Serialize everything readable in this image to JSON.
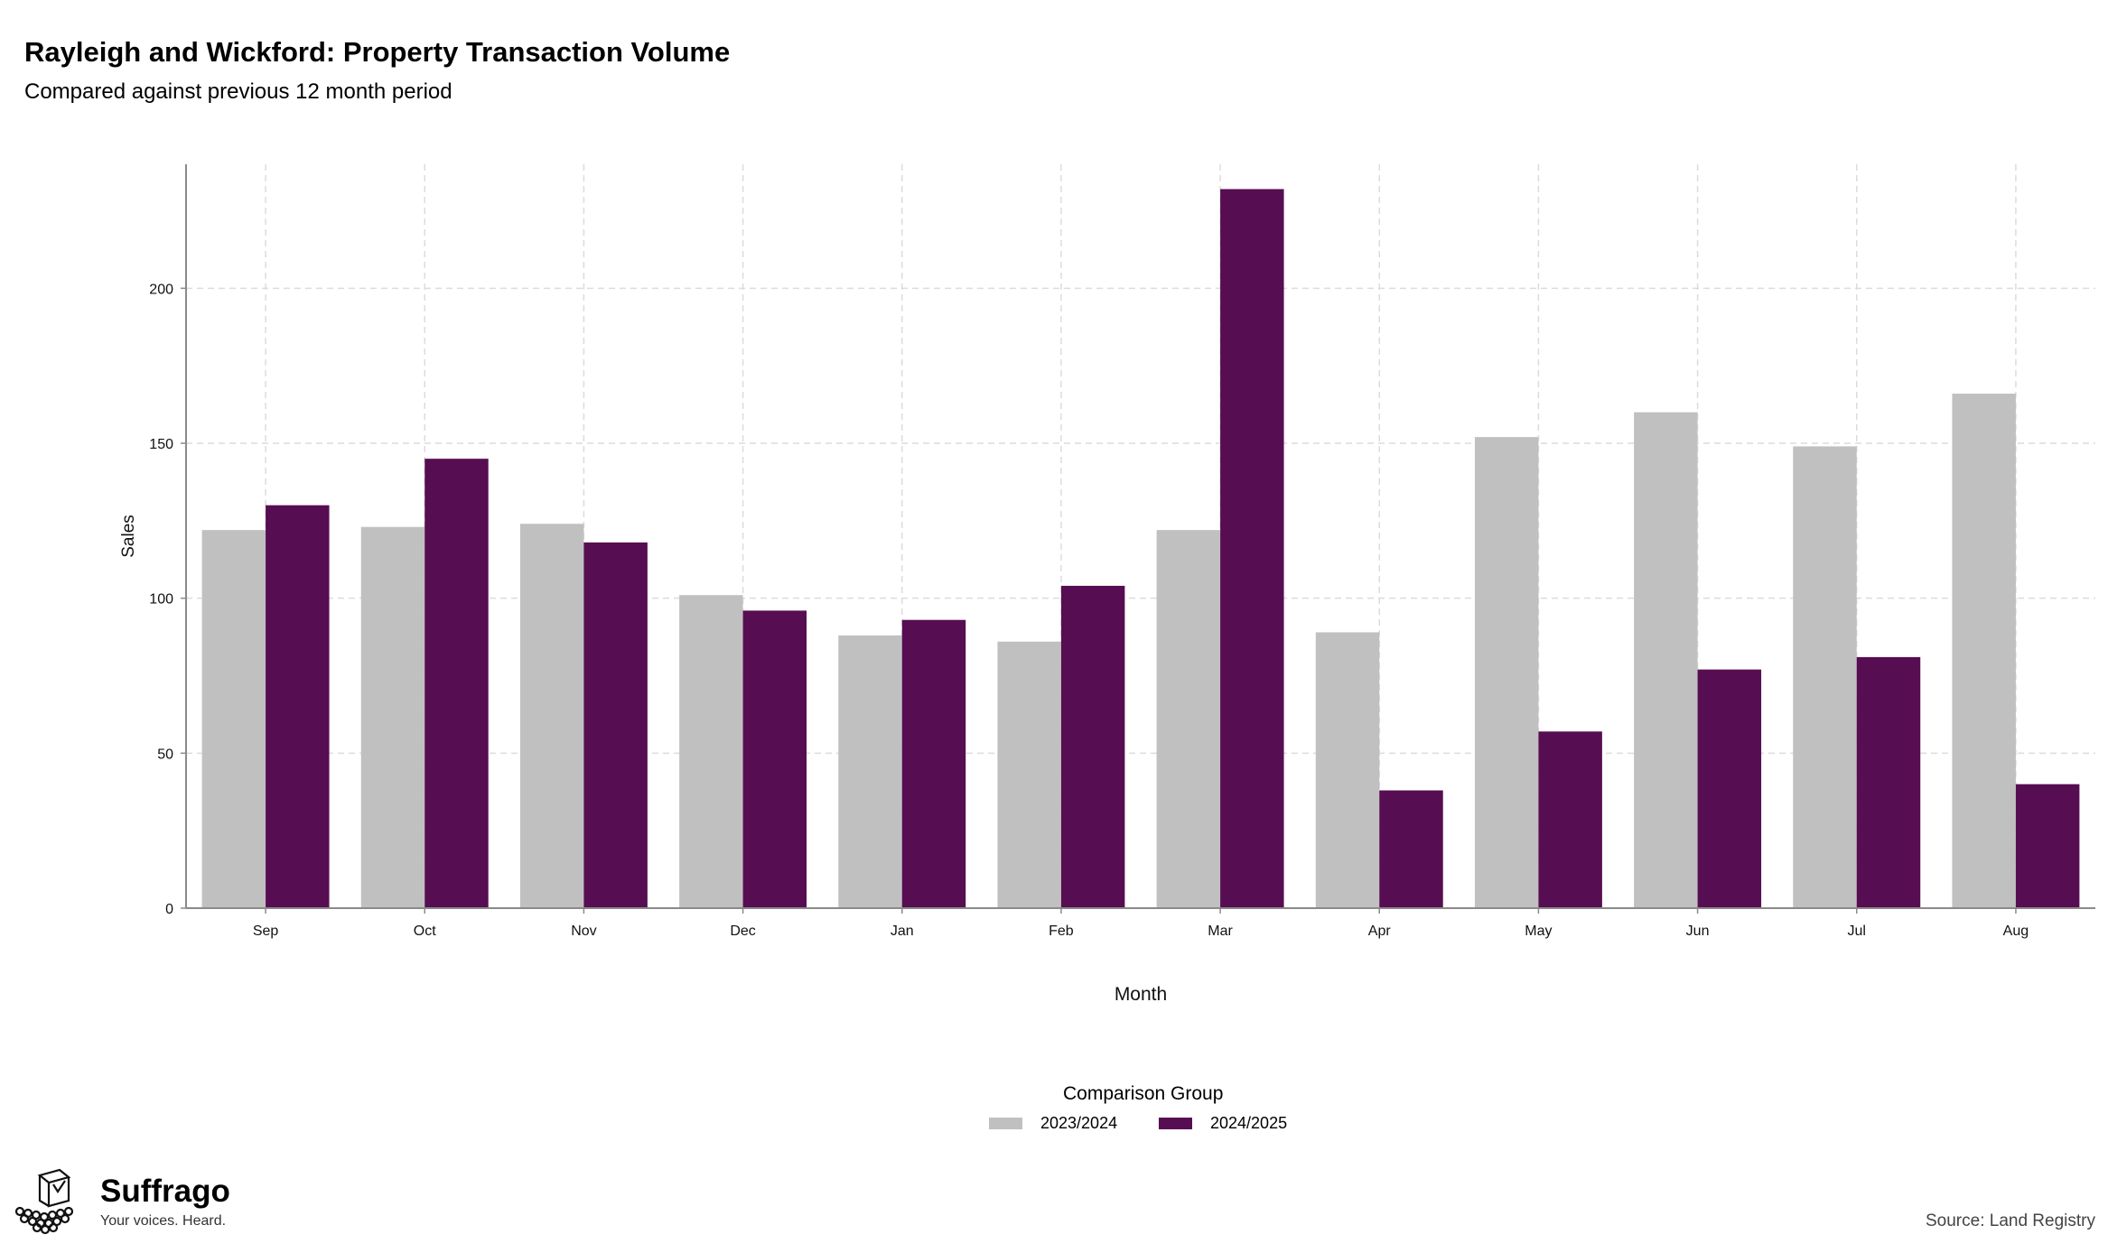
{
  "title": "Rayleigh and Wickford: Property Transaction Volume",
  "subtitle": "Compared against previous 12 month period",
  "legend": {
    "title": "Comparison Group"
  },
  "branding": {
    "name": "Suffrago",
    "tagline": "Your voices. Heard."
  },
  "source": "Source: Land Registry",
  "colors": {
    "series_2023_2024": "#c0c0c0",
    "series_2024_2025": "#570d52",
    "grid": "#dcdcdc",
    "axis": "#8a8a8a"
  },
  "chart_data": {
    "type": "bar",
    "xlabel": "Month",
    "ylabel": "Sales",
    "categories": [
      "Sep",
      "Oct",
      "Nov",
      "Dec",
      "Jan",
      "Feb",
      "Mar",
      "Apr",
      "May",
      "Jun",
      "Jul",
      "Aug"
    ],
    "series": [
      {
        "name": "2023/2024",
        "values": [
          122,
          123,
          124,
          101,
          88,
          86,
          122,
          89,
          152,
          160,
          149,
          166
        ]
      },
      {
        "name": "2024/2025",
        "values": [
          130,
          145,
          118,
          96,
          93,
          104,
          232,
          38,
          57,
          77,
          81,
          40
        ]
      }
    ],
    "yticks": [
      0,
      50,
      100,
      150,
      200
    ],
    "ylim": [
      0,
      240
    ],
    "grid": true,
    "legend_position": "bottom"
  }
}
